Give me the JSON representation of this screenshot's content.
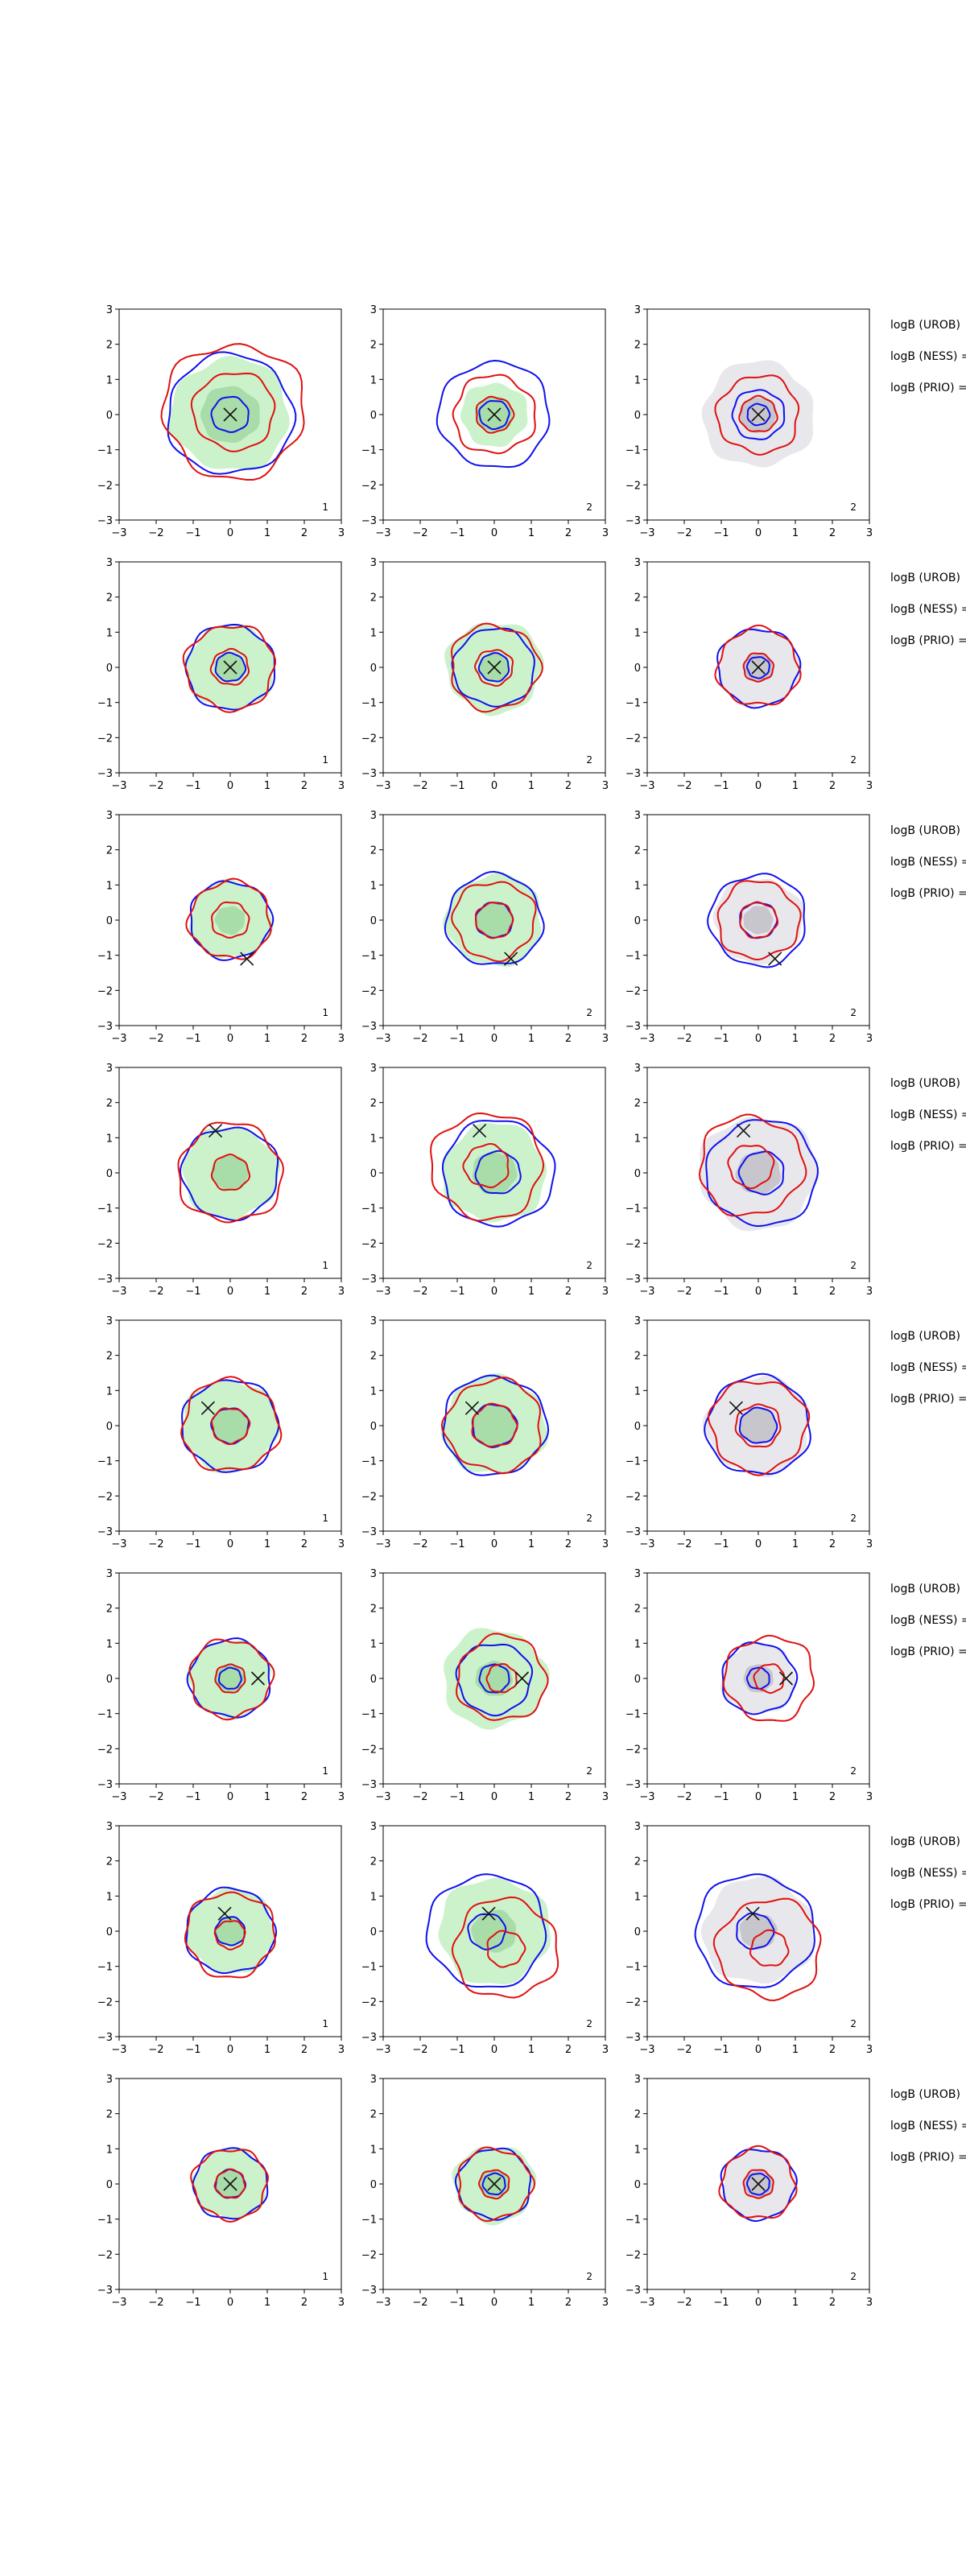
{
  "chart_data": {
    "type": "contour-grid",
    "rows": 8,
    "cols": 3,
    "xlim": [
      -3,
      3
    ],
    "ylim": [
      -3,
      3
    ],
    "ticks": [
      -3,
      -2,
      -1,
      0,
      1,
      2,
      3
    ],
    "colors": {
      "blue": "#1010ee",
      "red": "#e01010",
      "green_fill": "#ccf2cc",
      "green_fill_dark": "#a8dca8",
      "gray_fill": "#e8e8ec",
      "gray_fill_dark": "#c6c6cc",
      "marker": "#111111"
    },
    "side_labels": [
      "logB (UROB)",
      "logB (NESS) =",
      "logB (PRIO) ="
    ],
    "row_data": [
      {
        "marker": [
          0,
          0
        ],
        "panel_numbers": [
          "1",
          "2",
          "2"
        ],
        "panels": [
          {
            "fill": "green",
            "fill_r": [
              1.6,
              0.8
            ],
            "blue_r": [
              1.7,
              0.5
            ],
            "red_r": [
              1.9,
              1.1
            ],
            "blue_center": [
              0,
              0
            ],
            "red_center": [
              0.1,
              0.1
            ]
          },
          {
            "fill": "green",
            "fill_r": [
              0.9,
              0.5
            ],
            "blue_r": [
              1.5,
              0.4
            ],
            "red_r": [
              1.1,
              0.5
            ],
            "blue_center": [
              0,
              0
            ],
            "red_center": [
              0,
              0
            ]
          },
          {
            "fill": "gray",
            "fill_r": [
              1.5,
              0.5
            ],
            "blue_r": [
              0.7,
              0.3
            ],
            "red_r": [
              1.1,
              0.5
            ],
            "blue_center": [
              0,
              0
            ],
            "red_center": [
              0,
              0
            ]
          }
        ]
      },
      {
        "marker": [
          0,
          0
        ],
        "panel_numbers": [
          "1",
          "2",
          "2"
        ],
        "panels": [
          {
            "fill": "green",
            "fill_r": [
              1.2,
              0.4
            ],
            "blue_r": [
              1.2,
              0.4
            ],
            "red_r": [
              1.2,
              0.5
            ],
            "blue_center": [
              0,
              0
            ],
            "red_center": [
              0,
              0
            ]
          },
          {
            "fill": "green",
            "fill_r": [
              1.3,
              0.4
            ],
            "blue_r": [
              1.1,
              0.4
            ],
            "red_r": [
              1.2,
              0.5
            ],
            "blue_center": [
              0,
              0
            ],
            "red_center": [
              0,
              0
            ]
          },
          {
            "fill": "gray",
            "fill_r": [
              1.1,
              0.4
            ],
            "blue_r": [
              1.1,
              0.3
            ],
            "red_r": [
              1.1,
              0.4
            ],
            "blue_center": [
              0,
              0
            ],
            "red_center": [
              0,
              0
            ]
          }
        ]
      },
      {
        "marker": [
          0.45,
          -1.1
        ],
        "panel_numbers": [
          "1",
          "2",
          "2"
        ],
        "panels": [
          {
            "fill": "green",
            "fill_r": [
              1.1,
              0.4
            ],
            "blue_r": [
              1.1,
              0.0
            ],
            "red_r": [
              1.1,
              0.5
            ],
            "blue_center": [
              0,
              0
            ],
            "red_center": [
              0,
              0
            ]
          },
          {
            "fill": "green",
            "fill_r": [
              1.3,
              0.5
            ],
            "blue_r": [
              1.3,
              0.5
            ],
            "red_r": [
              1.1,
              0.5
            ],
            "blue_center": [
              0,
              0
            ],
            "red_center": [
              0,
              0
            ]
          },
          {
            "fill": "gray",
            "fill_r": [
              1.2,
              0.4
            ],
            "blue_r": [
              1.3,
              0.5
            ],
            "red_r": [
              1.1,
              0.5
            ],
            "blue_center": [
              0,
              0
            ],
            "red_center": [
              0,
              0
            ]
          }
        ]
      },
      {
        "marker": [
          -0.4,
          1.2
        ],
        "panel_numbers": [
          "1",
          "2",
          "2"
        ],
        "panels": [
          {
            "fill": "green",
            "fill_r": [
              1.3,
              0.5
            ],
            "blue_r": [
              1.3,
              0.0
            ],
            "red_r": [
              1.4,
              0.5
            ],
            "blue_center": [
              0,
              0
            ],
            "red_center": [
              0,
              0
            ]
          },
          {
            "fill": "green",
            "fill_r": [
              1.4,
              0.6
            ],
            "blue_r": [
              1.5,
              0.6
            ],
            "red_r": [
              1.5,
              0.6
            ],
            "blue_center": [
              0.1,
              0
            ],
            "red_center": [
              -0.2,
              0.2
            ]
          },
          {
            "fill": "gray",
            "fill_r": [
              1.6,
              0.6
            ],
            "blue_r": [
              1.5,
              0.6
            ],
            "red_r": [
              1.4,
              0.6
            ],
            "blue_center": [
              0.1,
              0
            ],
            "red_center": [
              -0.2,
              0.2
            ]
          }
        ]
      },
      {
        "marker": [
          -0.6,
          0.5
        ],
        "panel_numbers": [
          "1",
          "2",
          "2"
        ],
        "panels": [
          {
            "fill": "green",
            "fill_r": [
              1.3,
              0.5
            ],
            "blue_r": [
              1.3,
              0.5
            ],
            "red_r": [
              1.3,
              0.5
            ],
            "blue_center": [
              0,
              0
            ],
            "red_center": [
              0,
              0
            ]
          },
          {
            "fill": "green",
            "fill_r": [
              1.4,
              0.6
            ],
            "blue_r": [
              1.4,
              0.6
            ],
            "red_r": [
              1.3,
              0.6
            ],
            "blue_center": [
              0,
              0
            ],
            "red_center": [
              0,
              0
            ]
          },
          {
            "fill": "gray",
            "fill_r": [
              1.4,
              0.5
            ],
            "blue_r": [
              1.4,
              0.5
            ],
            "red_r": [
              1.3,
              0.6
            ],
            "blue_center": [
              0,
              0
            ],
            "red_center": [
              0,
              0
            ]
          }
        ]
      },
      {
        "marker": [
          0.75,
          0
        ],
        "panel_numbers": [
          "1",
          "2",
          "2"
        ],
        "panels": [
          {
            "fill": "green",
            "fill_r": [
              1.1,
              0.4
            ],
            "blue_r": [
              1.1,
              0.3
            ],
            "red_r": [
              1.1,
              0.4
            ],
            "blue_center": [
              0,
              0
            ],
            "red_center": [
              0,
              0
            ]
          },
          {
            "fill": "green",
            "fill_r": [
              1.4,
              0.5
            ],
            "blue_r": [
              1.0,
              0.4
            ],
            "red_r": [
              1.2,
              0.4
            ],
            "blue_center": [
              0,
              0
            ],
            "red_center": [
              0.2,
              0
            ]
          },
          {
            "fill": "gray",
            "fill_r": [
              1.0,
              0.4
            ],
            "blue_r": [
              1.0,
              0.3
            ],
            "red_r": [
              1.2,
              0.4
            ],
            "blue_center": [
              0,
              0
            ],
            "red_center": [
              0.3,
              0
            ]
          }
        ]
      },
      {
        "marker": [
          -0.15,
          0.5
        ],
        "panel_numbers": [
          "1",
          "2",
          "2"
        ],
        "panels": [
          {
            "fill": "green",
            "fill_r": [
              1.2,
              0.4
            ],
            "blue_r": [
              1.2,
              0.4
            ],
            "red_r": [
              1.2,
              0.4
            ],
            "blue_center": [
              0,
              0
            ],
            "red_center": [
              0,
              -0.1
            ]
          },
          {
            "fill": "green",
            "fill_r": [
              1.5,
              0.6
            ],
            "blue_r": [
              1.6,
              0.5
            ],
            "red_r": [
              1.4,
              0.5
            ],
            "blue_center": [
              -0.2,
              0
            ],
            "red_center": [
              0.3,
              -0.5
            ]
          },
          {
            "fill": "gray",
            "fill_r": [
              1.5,
              0.5
            ],
            "blue_r": [
              1.6,
              0.5
            ],
            "red_r": [
              1.4,
              0.5
            ],
            "blue_center": [
              -0.1,
              0
            ],
            "red_center": [
              0.3,
              -0.5
            ]
          }
        ]
      },
      {
        "marker": [
          0,
          0
        ],
        "panel_numbers": [
          "1",
          "2",
          "2"
        ],
        "panels": [
          {
            "fill": "green",
            "fill_r": [
              1.0,
              0.4
            ],
            "blue_r": [
              1.0,
              0.4
            ],
            "red_r": [
              1.0,
              0.4
            ],
            "blue_center": [
              0,
              0
            ],
            "red_center": [
              0,
              0
            ]
          },
          {
            "fill": "green",
            "fill_r": [
              1.1,
              0.4
            ],
            "blue_r": [
              1.0,
              0.3
            ],
            "red_r": [
              1.0,
              0.4
            ],
            "blue_center": [
              0,
              0
            ],
            "red_center": [
              0,
              0
            ]
          },
          {
            "fill": "gray",
            "fill_r": [
              1.0,
              0.4
            ],
            "blue_r": [
              1.0,
              0.3
            ],
            "red_r": [
              1.0,
              0.4
            ],
            "blue_center": [
              0,
              0
            ],
            "red_center": [
              0,
              0
            ]
          }
        ]
      }
    ]
  }
}
